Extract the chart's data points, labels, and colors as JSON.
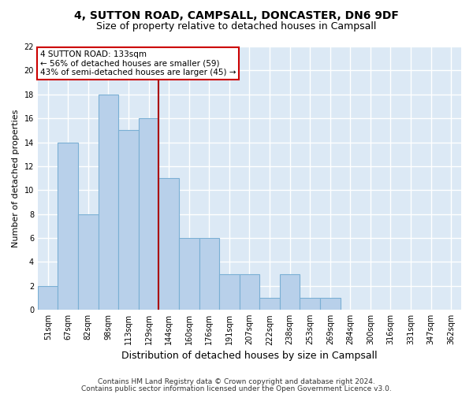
{
  "title1": "4, SUTTON ROAD, CAMPSALL, DONCASTER, DN6 9DF",
  "title2": "Size of property relative to detached houses in Campsall",
  "xlabel": "Distribution of detached houses by size in Campsall",
  "ylabel": "Number of detached properties",
  "categories": [
    "51sqm",
    "67sqm",
    "82sqm",
    "98sqm",
    "113sqm",
    "129sqm",
    "144sqm",
    "160sqm",
    "176sqm",
    "191sqm",
    "207sqm",
    "222sqm",
    "238sqm",
    "253sqm",
    "269sqm",
    "284sqm",
    "300sqm",
    "316sqm",
    "331sqm",
    "347sqm",
    "362sqm"
  ],
  "values": [
    2,
    14,
    8,
    18,
    15,
    16,
    11,
    6,
    6,
    3,
    3,
    1,
    3,
    1,
    1,
    0,
    0,
    0,
    0,
    0,
    0
  ],
  "bar_color": "#b8d0ea",
  "bar_edge_color": "#7aafd4",
  "background_color": "#dce9f5",
  "grid_color": "#ffffff",
  "vline_x_index": 5.5,
  "vline_color": "#aa0000",
  "annotation_text_line1": "4 SUTTON ROAD: 133sqm",
  "annotation_text_line2": "← 56% of detached houses are smaller (59)",
  "annotation_text_line3": "43% of semi-detached houses are larger (45) →",
  "annotation_box_facecolor": "#ffffff",
  "annotation_box_edgecolor": "#cc0000",
  "ylim_max": 22,
  "yticks": [
    0,
    2,
    4,
    6,
    8,
    10,
    12,
    14,
    16,
    18,
    20,
    22
  ],
  "footer1": "Contains HM Land Registry data © Crown copyright and database right 2024.",
  "footer2": "Contains public sector information licensed under the Open Government Licence v3.0.",
  "title1_fontsize": 10,
  "title2_fontsize": 9,
  "xlabel_fontsize": 9,
  "ylabel_fontsize": 8,
  "tick_fontsize": 7,
  "annotation_fontsize": 7.5,
  "footer_fontsize": 6.5
}
